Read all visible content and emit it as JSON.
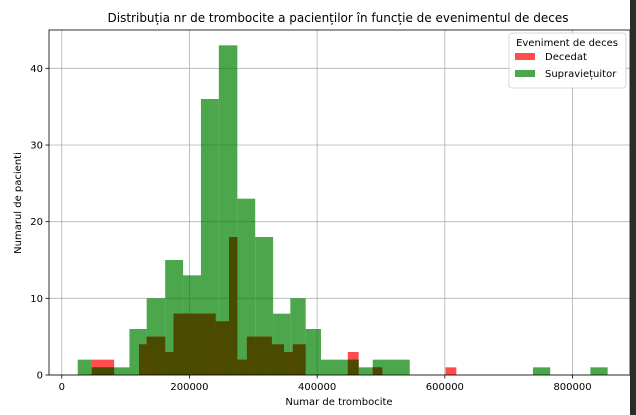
{
  "chart_data": {
    "type": "bar",
    "subtype": "overlaid-histogram",
    "title": "Distribuția nr de trombocite a pacienților în funcție de evenimentul de deces",
    "xlabel": "Numar de trombocite",
    "ylabel": "Numarul de pacienti",
    "xlim": [
      -20000,
      890000
    ],
    "ylim": [
      0,
      45
    ],
    "xticks": [
      0,
      200000,
      400000,
      600000,
      800000
    ],
    "yticks": [
      0,
      10,
      20,
      30,
      40
    ],
    "grid": true,
    "legend": {
      "title": "Eveniment de deces",
      "placement": "top-right",
      "entries": [
        "Decedat",
        "Supraviețuitor"
      ]
    },
    "colors": {
      "Decedat": "#ff0000",
      "Supraviețuitor": "#008000",
      "overlap": "#4a4a00"
    },
    "series": [
      {
        "name": "Decedat",
        "bins": [
          {
            "x0": 47000,
            "x1": 82000,
            "count": 2
          },
          {
            "x0": 121000,
            "x1": 133000,
            "count": 4
          },
          {
            "x0": 133000,
            "x1": 162000,
            "count": 5
          },
          {
            "x0": 162000,
            "x1": 175000,
            "count": 3
          },
          {
            "x0": 175000,
            "x1": 241000,
            "count": 8
          },
          {
            "x0": 241000,
            "x1": 262000,
            "count": 7
          },
          {
            "x0": 262000,
            "x1": 275000,
            "count": 18
          },
          {
            "x0": 275000,
            "x1": 290000,
            "count": 2
          },
          {
            "x0": 290000,
            "x1": 329000,
            "count": 5
          },
          {
            "x0": 329000,
            "x1": 348000,
            "count": 4
          },
          {
            "x0": 348000,
            "x1": 362000,
            "count": 3
          },
          {
            "x0": 362000,
            "x1": 382000,
            "count": 4
          },
          {
            "x0": 448000,
            "x1": 465000,
            "count": 3
          },
          {
            "x0": 487000,
            "x1": 502000,
            "count": 1
          },
          {
            "x0": 601000,
            "x1": 618000,
            "count": 1
          }
        ]
      },
      {
        "name": "Supraviețuitor",
        "bins": [
          {
            "x0": 25000,
            "x1": 47000,
            "count": 2
          },
          {
            "x0": 47000,
            "x1": 106000,
            "count": 1
          },
          {
            "x0": 106000,
            "x1": 133000,
            "count": 6
          },
          {
            "x0": 133000,
            "x1": 162000,
            "count": 10
          },
          {
            "x0": 162000,
            "x1": 190000,
            "count": 15
          },
          {
            "x0": 190000,
            "x1": 218000,
            "count": 13
          },
          {
            "x0": 218000,
            "x1": 246000,
            "count": 36
          },
          {
            "x0": 246000,
            "x1": 275000,
            "count": 43
          },
          {
            "x0": 275000,
            "x1": 303000,
            "count": 23
          },
          {
            "x0": 303000,
            "x1": 331000,
            "count": 18
          },
          {
            "x0": 331000,
            "x1": 358000,
            "count": 8
          },
          {
            "x0": 358000,
            "x1": 382000,
            "count": 10
          },
          {
            "x0": 382000,
            "x1": 406000,
            "count": 6
          },
          {
            "x0": 406000,
            "x1": 448000,
            "count": 2
          },
          {
            "x0": 448000,
            "x1": 465000,
            "count": 2
          },
          {
            "x0": 465000,
            "x1": 487000,
            "count": 1
          },
          {
            "x0": 487000,
            "x1": 545000,
            "count": 2
          },
          {
            "x0": 738000,
            "x1": 765000,
            "count": 1
          },
          {
            "x0": 828000,
            "x1": 855000,
            "count": 1
          }
        ]
      }
    ]
  }
}
